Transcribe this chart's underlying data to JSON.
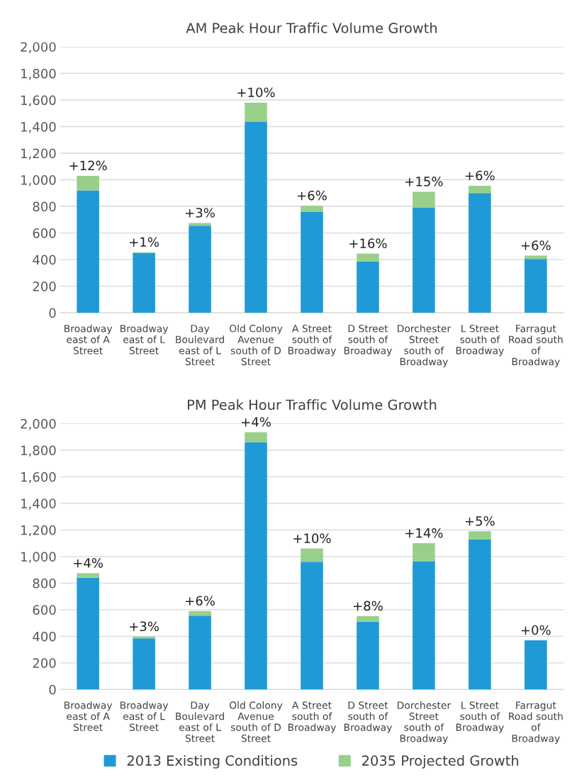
{
  "chart_data": [
    {
      "type": "bar",
      "title": "AM Peak Hour Traffic Volume Growth",
      "stacked": true,
      "grid": "y",
      "legend": false,
      "categories": [
        "Broadway east of A Street",
        "Broadway east of L Street",
        "Day Boulevard east of L Street",
        "Old Colony Avenue south of D Street",
        "A Street south of Broadway",
        "D Street south of Broadway",
        "Dorchester Street south of Broadway",
        "L Street south of Broadway",
        "Farragut Road south of Broadway"
      ],
      "ylim": [
        0,
        2000
      ],
      "yticks": [
        {
          "value": 0,
          "label": "0"
        },
        {
          "value": 200,
          "label": "200"
        },
        {
          "value": 400,
          "label": "400"
        },
        {
          "value": 600,
          "label": "600"
        },
        {
          "value": 800,
          "label": "800"
        },
        {
          "value": 1000,
          "label": "1,000"
        },
        {
          "value": 1200,
          "label": "1,200"
        },
        {
          "value": 1400,
          "label": "1,400"
        },
        {
          "value": 1600,
          "label": "1,600"
        },
        {
          "value": 1800,
          "label": "1,800"
        },
        {
          "value": 2000,
          "label": "2,000"
        }
      ],
      "series": [
        {
          "color": "#1f9ad6",
          "values": [
            920,
            450,
            655,
            1435,
            760,
            385,
            790,
            900,
            405
          ]
        },
        {
          "color": "#98d08a",
          "values": [
            110,
            5,
            20,
            145,
            45,
            60,
            120,
            55,
            25
          ]
        }
      ],
      "annotations": [
        {
          "text": "+12%",
          "x": "Broadway east of A Street",
          "y": 1030
        },
        {
          "text": "+1%",
          "x": "Broadway east of L Street",
          "y": 455
        },
        {
          "text": "+3%",
          "x": "Day Boulevard east of L Street",
          "y": 675
        },
        {
          "text": "+10%",
          "x": "Old Colony Avenue south of D Street",
          "y": 1580
        },
        {
          "text": "+6%",
          "x": "A Street south of Broadway",
          "y": 805
        },
        {
          "text": "+16%",
          "x": "D Street south of Broadway",
          "y": 445
        },
        {
          "text": "+15%",
          "x": "Dorchester Street south of Broadway",
          "y": 910
        },
        {
          "text": "+6%",
          "x": "L Street south of Broadway",
          "y": 955
        },
        {
          "text": "+6%",
          "x": "Farragut Road south of Broadway",
          "y": 430
        }
      ]
    },
    {
      "type": "bar",
      "title": "PM Peak Hour Traffic Volume Growth",
      "stacked": true,
      "grid": "y",
      "legend": "bottom",
      "categories": [
        "Broadway east of A Street",
        "Broadway east of L Street",
        "Day Boulevard east of L Street",
        "Old Colony Avenue south of D Street",
        "A Street south of Broadway",
        "D Street south of Broadway",
        "Dorchester Street south of Broadway",
        "L Street south of Broadway",
        "Farragut Road south of Broadway"
      ],
      "ylim": [
        0,
        2000
      ],
      "yticks": [
        {
          "value": 0,
          "label": "0"
        },
        {
          "value": 200,
          "label": "200"
        },
        {
          "value": 400,
          "label": "400"
        },
        {
          "value": 600,
          "label": "600"
        },
        {
          "value": 800,
          "label": "800"
        },
        {
          "value": 1000,
          "label": "1,000"
        },
        {
          "value": 1200,
          "label": "1,200"
        },
        {
          "value": 1400,
          "label": "1,400"
        },
        {
          "value": 1600,
          "label": "1,600"
        },
        {
          "value": 1800,
          "label": "1,800"
        },
        {
          "value": 2000,
          "label": "2,000"
        }
      ],
      "series": [
        {
          "name": "2013 Existing Conditions",
          "color": "#1f9ad6",
          "values": [
            840,
            385,
            555,
            1860,
            960,
            510,
            965,
            1130,
            370
          ]
        },
        {
          "name": "2035 Projected Growth",
          "color": "#98d08a",
          "values": [
            35,
            13,
            35,
            75,
            100,
            42,
            135,
            60,
            0
          ]
        }
      ],
      "annotations": [
        {
          "text": "+4%",
          "x": "Broadway east of A Street",
          "y": 875
        },
        {
          "text": "+3%",
          "x": "Broadway east of L Street",
          "y": 398
        },
        {
          "text": "+6%",
          "x": "Day Boulevard east of L Street",
          "y": 590
        },
        {
          "text": "+4%",
          "x": "Old Colony Avenue south of D Street",
          "y": 1935
        },
        {
          "text": "+10%",
          "x": "A Street south of Broadway",
          "y": 1060
        },
        {
          "text": "+8%",
          "x": "D Street south of Broadway",
          "y": 552
        },
        {
          "text": "+14%",
          "x": "Dorchester Street south of Broadway",
          "y": 1100
        },
        {
          "text": "+5%",
          "x": "L Street south of Broadway",
          "y": 1190
        },
        {
          "text": "+0%",
          "x": "Farragut Road south of Broadway",
          "y": 370
        }
      ]
    }
  ]
}
